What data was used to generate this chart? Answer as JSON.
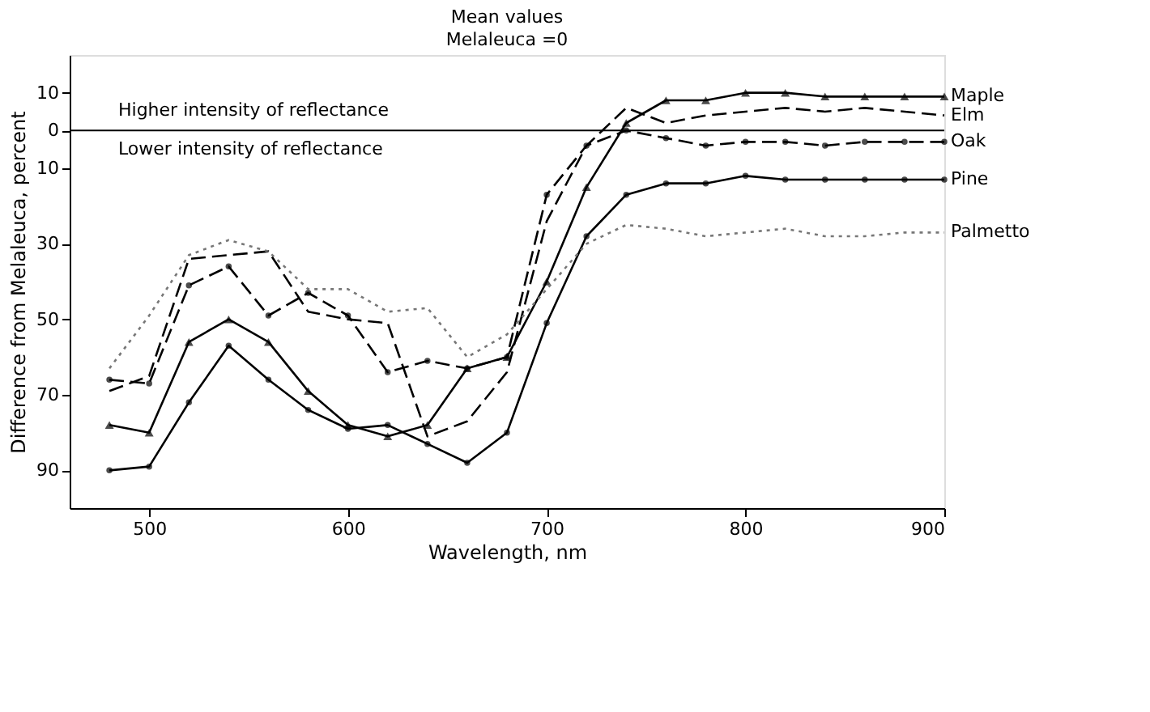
{
  "chart_data": {
    "type": "line",
    "title": "Mean values",
    "subtitle": "Melaleuca =0",
    "xlabel": "Wavelength, nm",
    "ylabel": "Difference from Melaleuca, percent",
    "x": [
      480,
      500,
      520,
      540,
      560,
      580,
      600,
      620,
      640,
      660,
      680,
      700,
      720,
      740,
      760,
      780,
      800,
      820,
      840,
      860,
      880,
      900
    ],
    "series": [
      {
        "name": "Maple",
        "color": "#000000",
        "marker": "triangle",
        "line_style": "solid",
        "values": [
          -78,
          -80,
          -56,
          -50,
          -56,
          -69,
          -78,
          -81,
          -78,
          -63,
          -60,
          -40,
          -15,
          2,
          8,
          8,
          10,
          10,
          9,
          9,
          9,
          9
        ]
      },
      {
        "name": "Elm",
        "color": "#000000",
        "marker": "none",
        "line_style": "dashed",
        "values": [
          -69,
          -65,
          -34,
          -33,
          -32,
          -48,
          -50,
          -51,
          -81,
          -77,
          -64,
          -24,
          -4,
          6,
          2,
          4,
          5,
          6,
          5,
          6,
          5,
          4
        ]
      },
      {
        "name": "Oak",
        "color": "#000000",
        "marker": "circle",
        "line_style": "dashed",
        "values": [
          -66,
          -67,
          -41,
          -36,
          -49,
          -43,
          -49,
          -64,
          -61,
          -63,
          -60,
          -17,
          -4,
          0,
          -2,
          -4,
          -3,
          -3,
          -4,
          -3,
          -3,
          -3
        ]
      },
      {
        "name": "Pine",
        "color": "#000000",
        "marker": "circle",
        "line_style": "solid",
        "values": [
          -90,
          -89,
          -72,
          -57,
          -66,
          -74,
          -79,
          -78,
          -83,
          -88,
          -80,
          -51,
          -28,
          -17,
          -14,
          -14,
          -12,
          -13,
          -13,
          -13,
          -13,
          -13
        ]
      },
      {
        "name": "Palmetto",
        "color": "#777777",
        "marker": "none",
        "line_style": "dotted",
        "values": [
          -63,
          -49,
          -33,
          -29,
          -32,
          -42,
          -42,
          -48,
          -47,
          -60,
          -54,
          -42,
          -30,
          -25,
          -26,
          -28,
          -27,
          -26,
          -28,
          -28,
          -27,
          -27
        ]
      }
    ],
    "xlim": [
      460,
      900
    ],
    "xticks": [
      500,
      600,
      700,
      800,
      900
    ],
    "ylim": [
      -100,
      20
    ],
    "yticks": [
      10,
      0,
      {
        "value": -10,
        "label": "10"
      },
      {
        "value": -30,
        "label": "30"
      },
      {
        "value": -50,
        "label": "50"
      },
      {
        "value": -70,
        "label": "70"
      },
      {
        "value": -90,
        "label": "90"
      }
    ],
    "ref_lines": [
      {
        "axis": "y",
        "value": 0,
        "color": "#000000"
      }
    ],
    "annotations": [
      "Higher intensity of reflectance",
      "Lower intensity of reflectance"
    ],
    "grid": false
  }
}
